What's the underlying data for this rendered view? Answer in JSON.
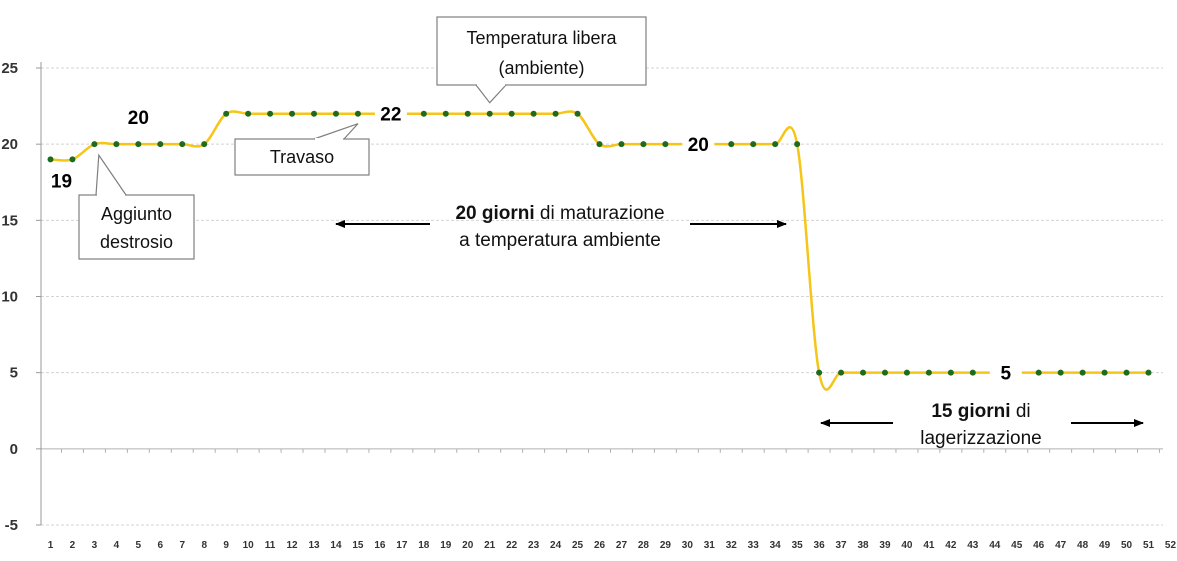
{
  "chart_data": {
    "type": "line",
    "x": [
      1,
      2,
      3,
      4,
      5,
      6,
      7,
      8,
      9,
      10,
      11,
      12,
      13,
      14,
      15,
      16,
      17,
      18,
      19,
      20,
      21,
      22,
      23,
      24,
      25,
      26,
      27,
      28,
      29,
      30,
      31,
      32,
      33,
      34,
      35,
      36,
      37,
      38,
      39,
      40,
      41,
      42,
      43,
      44,
      45,
      46,
      47,
      48,
      49,
      50,
      51
    ],
    "series": [
      {
        "values": [
          19,
          19,
          20,
          20,
          20,
          20,
          20,
          20,
          22,
          22,
          22,
          22,
          22,
          22,
          22,
          22,
          22,
          22,
          22,
          22,
          22,
          22,
          22,
          22,
          22,
          20,
          20,
          20,
          20,
          20,
          20,
          20,
          20,
          20,
          20,
          5,
          5,
          5,
          5,
          5,
          5,
          5,
          5,
          5,
          5,
          5,
          5,
          5,
          5,
          5,
          5
        ],
        "line_color": "#F5C518",
        "marker_color": "#1E6B1E"
      }
    ],
    "xticks": [
      "1",
      "2",
      "3",
      "4",
      "5",
      "6",
      "7",
      "8",
      "9",
      "10",
      "11",
      "12",
      "13",
      "14",
      "15",
      "16",
      "17",
      "18",
      "19",
      "20",
      "21",
      "22",
      "23",
      "24",
      "25",
      "26",
      "27",
      "28",
      "29",
      "30",
      "31",
      "32",
      "33",
      "34",
      "35",
      "36",
      "37",
      "38",
      "39",
      "40",
      "41",
      "42",
      "43",
      "44",
      "45",
      "46",
      "47",
      "48",
      "49",
      "50",
      "51",
      "52"
    ],
    "yticks": [
      "-5",
      "0",
      "5",
      "10",
      "15",
      "20",
      "25"
    ],
    "ylim": [
      -5,
      25
    ],
    "xlim": [
      1,
      52
    ],
    "grid": "horizontal dashed",
    "data_labels": [
      {
        "x": 1.5,
        "y": 19,
        "text": "19"
      },
      {
        "x": 5,
        "y": 20,
        "text": "20"
      },
      {
        "x": 16.5,
        "y": 22,
        "text": "22"
      },
      {
        "x": 30.5,
        "y": 20,
        "text": "20"
      },
      {
        "x": 44.5,
        "y": 5,
        "text": "5"
      }
    ],
    "callouts": [
      {
        "lines": [
          "Aggiunto",
          "destrosio"
        ]
      },
      {
        "lines": [
          "Travaso"
        ]
      },
      {
        "lines": [
          "Temperatura libera",
          "(ambiente)"
        ]
      }
    ],
    "annotations": [
      {
        "bold": "20 giorni",
        "rest": " di maturazione",
        "line2": "a temperatura ambiente"
      },
      {
        "bold": "15 giorni",
        "rest": " di",
        "line2": "lagerizzazione"
      }
    ]
  }
}
